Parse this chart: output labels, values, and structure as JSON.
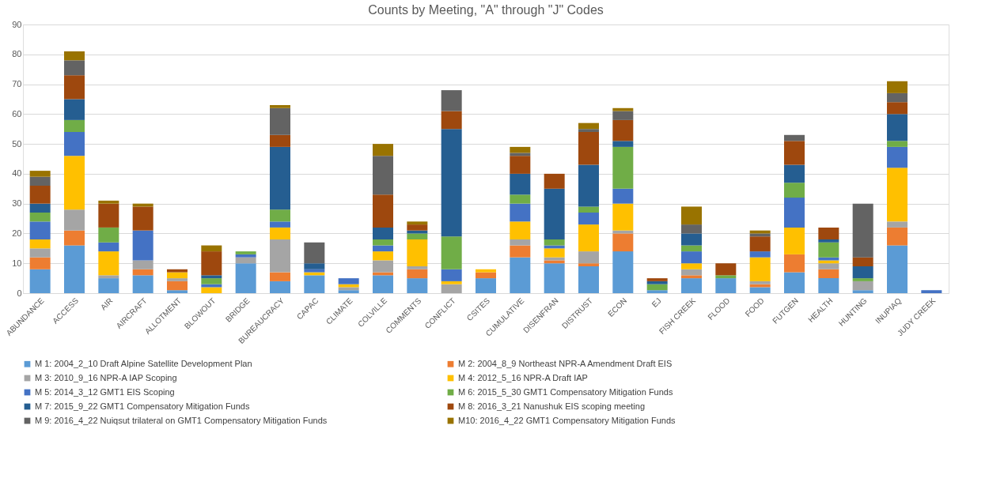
{
  "chart_data": {
    "type": "bar",
    "stacked": true,
    "title": "Counts by Meeting, \"A\" through \"J\" Codes",
    "categories": [
      "ABUNDANCE",
      "ACCESS",
      "AIR",
      "AIRCRAFT",
      "ALLOTMENT",
      "BLOWOUT",
      "BRIDGE",
      "BUREAUCRACY",
      "CAPAC",
      "CLIMATE",
      "COLVILLE",
      "COMMENTS",
      "CONFLICT",
      "CSITES",
      "CUMULATIVE",
      "DISENFRAN",
      "DISTRUST",
      "ECON",
      "EJ",
      "FISH CREEK",
      "FLOOD",
      "FOOD",
      "FUTGEN",
      "HEALTH",
      "HUNTING",
      "INUPIAQ",
      "JUDY CREEK"
    ],
    "series": [
      {
        "name": "M 1: 2004_2_10 Draft Alpine Satellite Development Plan",
        "color": "#5b9bd5",
        "values": [
          8,
          16,
          5,
          6,
          1,
          null,
          10,
          4,
          6,
          1,
          6,
          5,
          null,
          5,
          12,
          10,
          9,
          14,
          1,
          5,
          5,
          2,
          7,
          5,
          1,
          16,
          null
        ]
      },
      {
        "name": "M 2: 2004_8_9 Northeast NPR-A Amendment Draft EIS",
        "color": "#ed7d31",
        "values": [
          4,
          5,
          null,
          2,
          3,
          null,
          null,
          3,
          null,
          null,
          1,
          3,
          null,
          2,
          4,
          1,
          1,
          6,
          null,
          1,
          null,
          1,
          6,
          3,
          null,
          6,
          null
        ]
      },
      {
        "name": "M 3: 2010_9_16 NPR-A IAP Scoping",
        "color": "#a5a5a5",
        "values": [
          3,
          7,
          1,
          3,
          1,
          null,
          2,
          11,
          null,
          1,
          4,
          1,
          3,
          null,
          2,
          1,
          4,
          1,
          null,
          2,
          null,
          1,
          null,
          2,
          3,
          2,
          null
        ]
      },
      {
        "name": "M 4: 2012_5_16 NPR-A Draft IAP",
        "color": "#ffc000",
        "values": [
          3,
          18,
          8,
          null,
          2,
          2,
          null,
          4,
          1,
          1,
          3,
          9,
          1,
          1,
          6,
          3,
          9,
          9,
          null,
          2,
          null,
          8,
          9,
          1,
          null,
          18,
          null
        ]
      },
      {
        "name": "M 5: 2014_3_12 GMT1 EIS Scoping",
        "color": "#4472c4",
        "values": [
          6,
          8,
          3,
          10,
          null,
          1,
          1,
          2,
          1,
          2,
          2,
          null,
          4,
          null,
          6,
          1,
          4,
          5,
          null,
          4,
          null,
          2,
          10,
          1,
          null,
          7,
          1
        ]
      },
      {
        "name": "M 6: 2015_5_30 GMT1 Compensatory Mitigation Funds",
        "color": "#70ad47",
        "values": [
          3,
          4,
          5,
          null,
          null,
          2,
          1,
          4,
          null,
          null,
          2,
          2,
          11,
          null,
          3,
          2,
          2,
          14,
          2,
          2,
          1,
          null,
          5,
          5,
          1,
          2,
          null
        ]
      },
      {
        "name": "M 7: 2015_9_22 GMT1 Compensatory Mitigation Funds",
        "color": "#255e91",
        "values": [
          3,
          7,
          null,
          null,
          null,
          1,
          null,
          21,
          2,
          null,
          4,
          1,
          36,
          null,
          7,
          17,
          14,
          2,
          1,
          4,
          null,
          null,
          6,
          1,
          4,
          9,
          null
        ]
      },
      {
        "name": "M 8: 2016_3_21 Nanushuk EIS scoping meeting",
        "color": "#9e480e",
        "values": [
          6,
          8,
          8,
          8,
          1,
          8,
          null,
          4,
          null,
          null,
          11,
          2,
          6,
          null,
          6,
          5,
          11,
          7,
          1,
          null,
          4,
          5,
          8,
          4,
          3,
          4,
          null
        ]
      },
      {
        "name": "M 9: 2016_4_22 Nuiqsut trilateral on GMT1 Compensatory Mitigation Funds",
        "color": "#636363",
        "values": [
          3,
          5,
          null,
          null,
          null,
          null,
          null,
          9,
          7,
          null,
          13,
          null,
          7,
          null,
          1,
          null,
          1,
          3,
          null,
          3,
          null,
          1,
          2,
          null,
          18,
          3,
          null
        ]
      },
      {
        "name": "M10: 2016_4_22 GMT1 Compensatory Mitigation Funds",
        "color": "#997300",
        "values": [
          2,
          3,
          1,
          1,
          null,
          2,
          null,
          1,
          null,
          null,
          4,
          1,
          null,
          null,
          2,
          null,
          2,
          1,
          null,
          6,
          null,
          1,
          null,
          null,
          null,
          4,
          null
        ]
      }
    ],
    "ylim": [
      0,
      90
    ],
    "yticks": [
      0,
      10,
      20,
      30,
      40,
      50,
      60,
      70,
      80,
      90
    ],
    "grid": "y",
    "legend": "bottom"
  }
}
